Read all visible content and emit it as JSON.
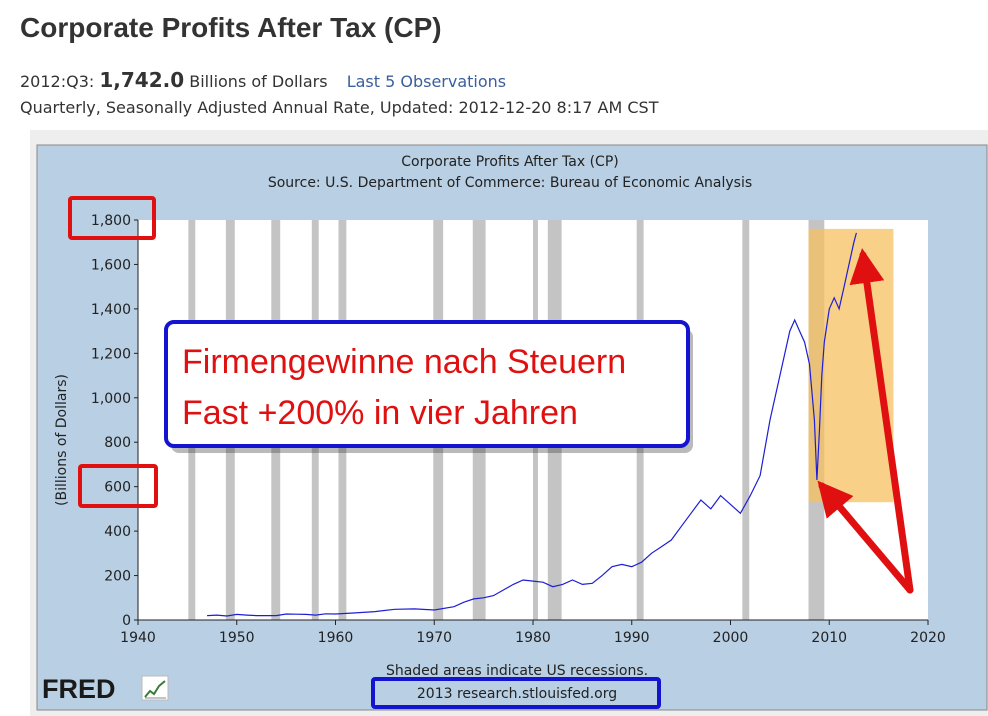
{
  "header": {
    "title": "Corporate Profits After Tax (CP)",
    "period": "2012:Q3:",
    "latest_value": "1,742.0",
    "units": "Billions of Dollars",
    "observations_link": "Last 5 Observations",
    "meta": "Quarterly, Seasonally Adjusted Annual Rate, Updated: 2012-12-20 8:17 AM CST"
  },
  "overlay": {
    "line1": "Firmengewinne nach Steuern",
    "line2": "Fast +200% in vier Jahren"
  },
  "branding": {
    "logo": "FRED",
    "logo_icon": "chart-line-icon",
    "footer": "2013 research.stlouisfed.org"
  },
  "colors": {
    "plot_bg": "#b8cfe4",
    "series": "#1e1ed6",
    "recession": "#c4c4c4",
    "highlight": "#f5c060",
    "annotation_red": "#e01010",
    "annotation_blue": "#1414d0"
  },
  "chart_data": {
    "type": "line",
    "title": "Corporate Profits After Tax (CP)",
    "subtitle": "Source: U.S. Department of Commerce: Bureau of Economic Analysis",
    "ylabel": "(Billions of Dollars)",
    "xlabel": "",
    "note": "Shaded areas indicate US recessions.",
    "xlim": [
      1940,
      2020
    ],
    "ylim": [
      0,
      1800
    ],
    "xticks": [
      1940,
      1950,
      1960,
      1970,
      1980,
      1990,
      2000,
      2010,
      2020
    ],
    "yticks": [
      0,
      200,
      400,
      600,
      800,
      1000,
      1200,
      1400,
      1600,
      1800
    ],
    "ytick_labels": [
      "0",
      "200",
      "400",
      "600",
      "800",
      "1,000",
      "1,200",
      "1,400",
      "1,600",
      "1,800"
    ],
    "recessions": [
      [
        1945.1,
        1945.8
      ],
      [
        1948.9,
        1949.8
      ],
      [
        1953.5,
        1954.4
      ],
      [
        1957.6,
        1958.3
      ],
      [
        1960.3,
        1961.1
      ],
      [
        1969.9,
        1970.9
      ],
      [
        1973.9,
        1975.2
      ],
      [
        1980.0,
        1980.5
      ],
      [
        1981.5,
        1982.9
      ],
      [
        1990.5,
        1991.2
      ],
      [
        2001.2,
        2001.9
      ],
      [
        2007.9,
        2009.5
      ]
    ],
    "highlight_range": {
      "x": [
        2007.9,
        2016.5
      ],
      "y": [
        530,
        1760
      ]
    },
    "series": [
      {
        "x": [
          1947,
          1948,
          1949,
          1950,
          1951,
          1952,
          1953,
          1954,
          1955,
          1956,
          1957,
          1958,
          1959,
          1960,
          1962,
          1964,
          1966,
          1968,
          1970,
          1972,
          1973,
          1974,
          1975,
          1976,
          1977,
          1978,
          1979,
          1980,
          1981,
          1982,
          1983,
          1984,
          1985,
          1986,
          1987,
          1988,
          1989,
          1990,
          1991,
          1992,
          1993,
          1994,
          1995,
          1996,
          1997,
          1998,
          1999,
          2000,
          2001,
          2002,
          2003,
          2004,
          2005,
          2006,
          2006.5,
          2007,
          2007.5,
          2008,
          2008.5,
          2008.75,
          2009,
          2009.25,
          2009.5,
          2010,
          2010.5,
          2011,
          2011.5,
          2012,
          2012.5,
          2012.75
        ],
        "y": [
          20,
          22,
          18,
          25,
          22,
          20,
          20,
          20,
          27,
          26,
          25,
          22,
          28,
          27,
          32,
          38,
          48,
          50,
          45,
          60,
          80,
          95,
          100,
          110,
          135,
          160,
          180,
          175,
          170,
          150,
          160,
          180,
          160,
          165,
          200,
          240,
          250,
          240,
          260,
          300,
          330,
          360,
          420,
          480,
          540,
          500,
          560,
          520,
          480,
          560,
          650,
          900,
          1100,
          1300,
          1350,
          1300,
          1250,
          1150,
          900,
          630,
          850,
          1100,
          1250,
          1400,
          1450,
          1400,
          1500,
          1600,
          1700,
          1742
        ]
      }
    ]
  }
}
